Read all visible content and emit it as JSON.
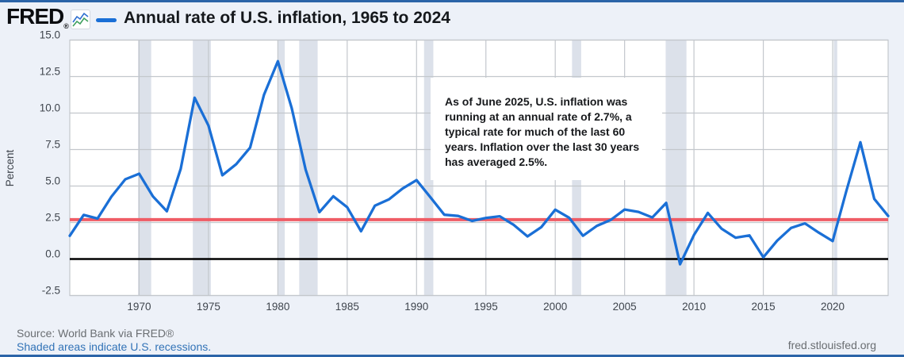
{
  "header": {
    "logo_text": "FRED",
    "logo_registered": "®",
    "title": "Annual rate of U.S. inflation, 1965 to 2024",
    "legend_color": "#1a6fd6"
  },
  "annotation": {
    "text": "As of June 2025, U.S. inflation was running at an annual rate of 2.7%, a typical rate for much of the last 60 years. Inflation over the last 30 years has averaged 2.5%."
  },
  "footer": {
    "source": "Source: World Bank via FRED®",
    "note": "Shaded areas indicate U.S. recessions.",
    "site": "fred.stlouisfed.org"
  },
  "chart_data": {
    "type": "line",
    "title": "Annual rate of U.S. inflation, 1965 to 2024",
    "ylabel": "Percent",
    "xlabel": "",
    "xlim": [
      1965,
      2024
    ],
    "ylim": [
      -2.5,
      15.0
    ],
    "xticks": [
      1970,
      1975,
      1980,
      1985,
      1990,
      1995,
      2000,
      2005,
      2010,
      2015,
      2020
    ],
    "yticks": [
      -2.5,
      0.0,
      2.5,
      5.0,
      7.5,
      10.0,
      12.5,
      15.0
    ],
    "grid": true,
    "x": [
      1965,
      1966,
      1967,
      1968,
      1969,
      1970,
      1971,
      1972,
      1973,
      1974,
      1975,
      1976,
      1977,
      1978,
      1979,
      1980,
      1981,
      1982,
      1983,
      1984,
      1985,
      1986,
      1987,
      1988,
      1989,
      1990,
      1991,
      1992,
      1993,
      1994,
      1995,
      1996,
      1997,
      1998,
      1999,
      2000,
      2001,
      2002,
      2003,
      2004,
      2005,
      2006,
      2007,
      2008,
      2009,
      2010,
      2011,
      2012,
      2013,
      2014,
      2015,
      2016,
      2017,
      2018,
      2019,
      2020,
      2021,
      2022,
      2023,
      2024
    ],
    "series": [
      {
        "name": "Annual rate of U.S. inflation",
        "color": "#1a6fd6",
        "values": [
          1.59,
          3.02,
          2.77,
          4.27,
          5.46,
          5.84,
          4.29,
          3.27,
          6.18,
          11.05,
          9.14,
          5.74,
          6.5,
          7.63,
          11.25,
          13.55,
          10.33,
          6.13,
          3.21,
          4.3,
          3.55,
          1.9,
          3.66,
          4.08,
          4.83,
          5.4,
          4.23,
          3.03,
          2.95,
          2.61,
          2.81,
          2.93,
          2.34,
          1.55,
          2.19,
          3.38,
          2.83,
          1.59,
          2.27,
          2.68,
          3.39,
          3.23,
          2.85,
          3.84,
          -0.36,
          1.64,
          3.16,
          2.07,
          1.46,
          1.62,
          0.12,
          1.26,
          2.13,
          2.44,
          1.81,
          1.23,
          4.7,
          8.0,
          4.12,
          2.95
        ]
      }
    ],
    "reference_lines": [
      {
        "name": "zero-line",
        "value": 0.0,
        "color": "#000000",
        "width": 2.4
      },
      {
        "name": "current-rate-2.7-percent",
        "value": 2.7,
        "color": "#ef5c65",
        "width": 4
      }
    ],
    "recession_bands": [
      [
        1969.92,
        1970.87
      ],
      [
        1973.87,
        1975.17
      ],
      [
        1980.0,
        1980.5
      ],
      [
        1981.54,
        1982.87
      ],
      [
        1990.54,
        1991.21
      ],
      [
        2001.21,
        2001.87
      ],
      [
        2007.96,
        2009.46
      ],
      [
        2020.08,
        2020.33
      ]
    ],
    "colors": {
      "line": "#1a6fd6",
      "grid": "#c3c7cc",
      "recession": "#dce1ea",
      "plot_background": "#ffffff",
      "page_background": "#edf1f8",
      "tick_text": "#3f454d"
    }
  }
}
